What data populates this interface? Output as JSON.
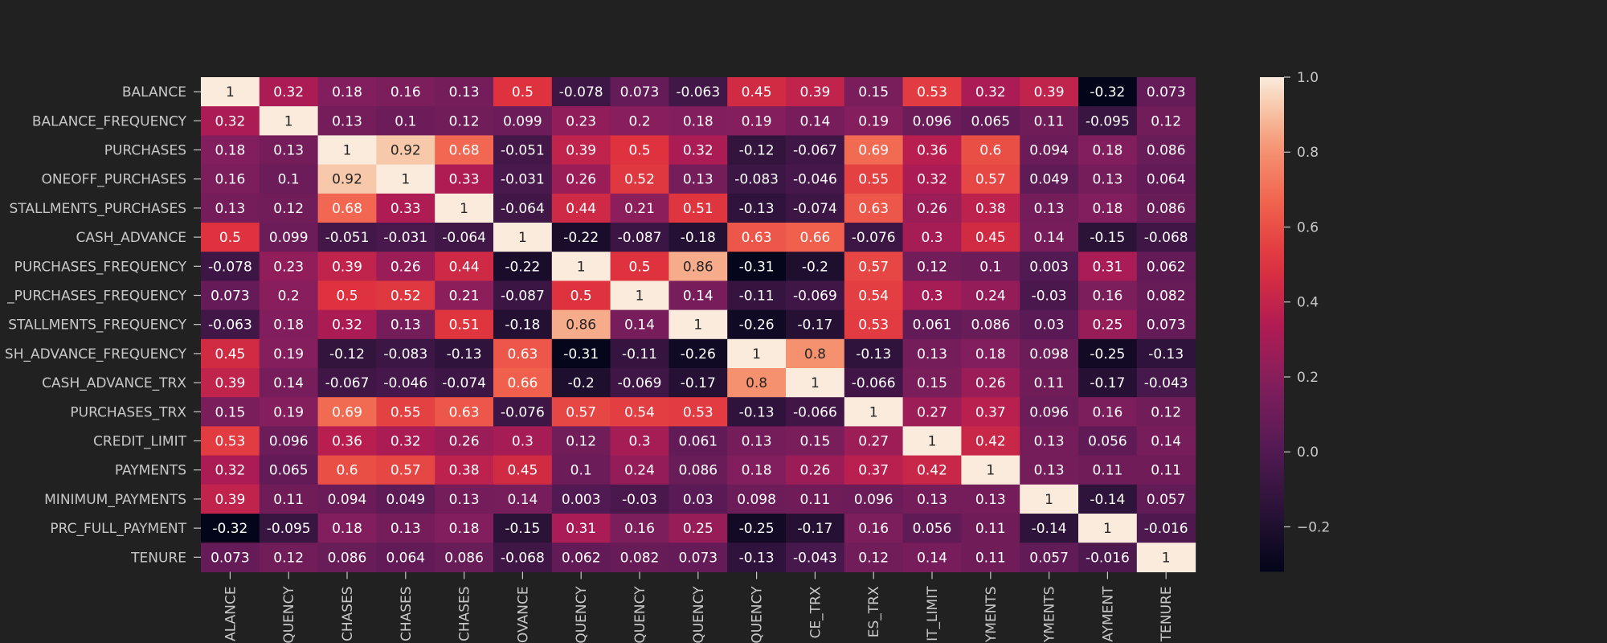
{
  "chart_data": {
    "type": "heatmap",
    "title": "",
    "xlabel": "",
    "ylabel": "",
    "colormap": "rocket",
    "row_labels": [
      "BALANCE",
      "BALANCE_FREQUENCY",
      "PURCHASES",
      "ONEOFF_PURCHASES",
      "STALLMENTS_PURCHASES",
      "CASH_ADVANCE",
      "PURCHASES_FREQUENCY",
      "_PURCHASES_FREQUENCY",
      "STALLMENTS_FREQUENCY",
      "SH_ADVANCE_FREQUENCY",
      "CASH_ADVANCE_TRX",
      "PURCHASES_TRX",
      "CREDIT_LIMIT",
      "PAYMENTS",
      "MINIMUM_PAYMENTS",
      "PRC_FULL_PAYMENT",
      "TENURE"
    ],
    "col_labels": [
      "ALANCE",
      "QUENCY",
      "CHASES",
      "CHASES",
      "CHASES",
      "OVANCE",
      "QUENCY",
      "QUENCY",
      "QUENCY",
      "QUENCY",
      "CE_TRX",
      "ES_TRX",
      "IT_LIMIT",
      "YMENTS",
      "YMENTS",
      "AYMENT",
      "TENURE"
    ],
    "values": [
      [
        1,
        0.32,
        0.18,
        0.16,
        0.13,
        0.5,
        -0.078,
        0.073,
        -0.063,
        0.45,
        0.39,
        0.15,
        0.53,
        0.32,
        0.39,
        -0.32,
        0.073
      ],
      [
        0.32,
        1,
        0.13,
        0.1,
        0.12,
        0.099,
        0.23,
        0.2,
        0.18,
        0.19,
        0.14,
        0.19,
        0.096,
        0.065,
        0.11,
        -0.095,
        0.12
      ],
      [
        0.18,
        0.13,
        1,
        0.92,
        0.68,
        -0.051,
        0.39,
        0.5,
        0.32,
        -0.12,
        -0.067,
        0.69,
        0.36,
        0.6,
        0.094,
        0.18,
        0.086
      ],
      [
        0.16,
        0.1,
        0.92,
        1,
        0.33,
        -0.031,
        0.26,
        0.52,
        0.13,
        -0.083,
        -0.046,
        0.55,
        0.32,
        0.57,
        0.049,
        0.13,
        0.064
      ],
      [
        0.13,
        0.12,
        0.68,
        0.33,
        1,
        -0.064,
        0.44,
        0.21,
        0.51,
        -0.13,
        -0.074,
        0.63,
        0.26,
        0.38,
        0.13,
        0.18,
        0.086
      ],
      [
        0.5,
        0.099,
        -0.051,
        -0.031,
        -0.064,
        1,
        -0.22,
        -0.087,
        -0.18,
        0.63,
        0.66,
        -0.076,
        0.3,
        0.45,
        0.14,
        -0.15,
        -0.068
      ],
      [
        -0.078,
        0.23,
        0.39,
        0.26,
        0.44,
        -0.22,
        1,
        0.5,
        0.86,
        -0.31,
        -0.2,
        0.57,
        0.12,
        0.1,
        0.003,
        0.31,
        0.062
      ],
      [
        0.073,
        0.2,
        0.5,
        0.52,
        0.21,
        -0.087,
        0.5,
        1,
        0.14,
        -0.11,
        -0.069,
        0.54,
        0.3,
        0.24,
        -0.03,
        0.16,
        0.082
      ],
      [
        -0.063,
        0.18,
        0.32,
        0.13,
        0.51,
        -0.18,
        0.86,
        0.14,
        1,
        -0.26,
        -0.17,
        0.53,
        0.061,
        0.086,
        0.03,
        0.25,
        0.073
      ],
      [
        0.45,
        0.19,
        -0.12,
        -0.083,
        -0.13,
        0.63,
        -0.31,
        -0.11,
        -0.26,
        1,
        0.8,
        -0.13,
        0.13,
        0.18,
        0.098,
        -0.25,
        -0.13
      ],
      [
        0.39,
        0.14,
        -0.067,
        -0.046,
        -0.074,
        0.66,
        -0.2,
        -0.069,
        -0.17,
        0.8,
        1,
        -0.066,
        0.15,
        0.26,
        0.11,
        -0.17,
        -0.043
      ],
      [
        0.15,
        0.19,
        0.69,
        0.55,
        0.63,
        -0.076,
        0.57,
        0.54,
        0.53,
        -0.13,
        -0.066,
        1,
        0.27,
        0.37,
        0.096,
        0.16,
        0.12
      ],
      [
        0.53,
        0.096,
        0.36,
        0.32,
        0.26,
        0.3,
        0.12,
        0.3,
        0.061,
        0.13,
        0.15,
        0.27,
        1,
        0.42,
        0.13,
        0.056,
        0.14
      ],
      [
        0.32,
        0.065,
        0.6,
        0.57,
        0.38,
        0.45,
        0.1,
        0.24,
        0.086,
        0.18,
        0.26,
        0.37,
        0.42,
        1,
        0.13,
        0.11,
        0.11
      ],
      [
        0.39,
        0.11,
        0.094,
        0.049,
        0.13,
        0.14,
        0.003,
        -0.03,
        0.03,
        0.098,
        0.11,
        0.096,
        0.13,
        0.13,
        1,
        -0.14,
        0.057
      ],
      [
        -0.32,
        -0.095,
        0.18,
        0.13,
        0.18,
        -0.15,
        0.31,
        0.16,
        0.25,
        -0.25,
        -0.17,
        0.16,
        0.056,
        0.11,
        -0.14,
        1,
        -0.016
      ],
      [
        0.073,
        0.12,
        0.086,
        0.064,
        0.086,
        -0.068,
        0.062,
        0.082,
        0.073,
        -0.13,
        -0.043,
        0.12,
        0.14,
        0.11,
        0.057,
        -0.016,
        1
      ]
    ],
    "vmin": -0.32,
    "vmax": 1.0,
    "colorbar": {
      "ticks": [
        1.0,
        0.8,
        0.6,
        0.4,
        0.2,
        0.0,
        -0.2
      ],
      "tick_labels": [
        "1.0",
        "0.8",
        "0.6",
        "0.4",
        "0.2",
        "0.0",
        "−0.2"
      ]
    },
    "grid": false,
    "legend": "right colorbar"
  }
}
